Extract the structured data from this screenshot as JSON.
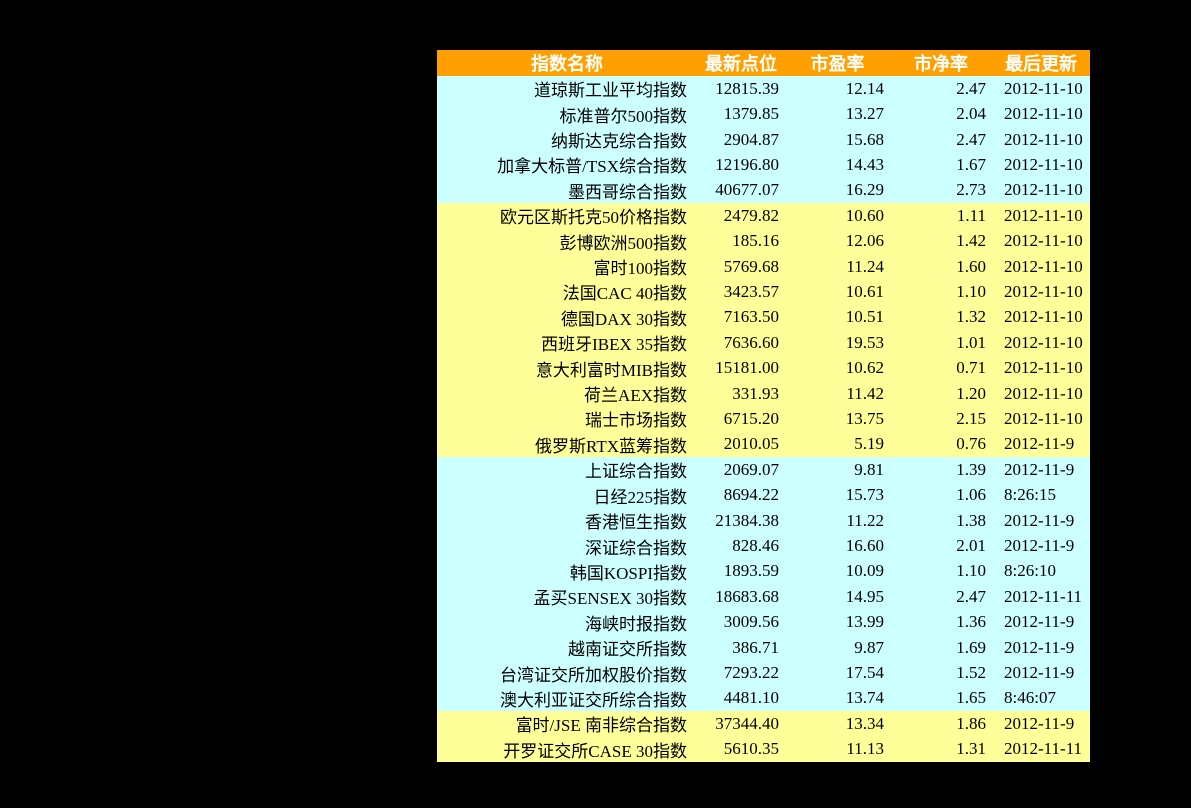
{
  "colors": {
    "page_bg": "#000000",
    "header_bg": "#FFA000",
    "header_text": "#FFFFFF",
    "row_cyan": "#CCFFFF",
    "row_yellow": "#FFFF99",
    "text": "#000000"
  },
  "chart_data": {
    "type": "table",
    "columns": [
      "指数名称",
      "最新点位",
      "市盈率",
      "市净率",
      "最后更新"
    ],
    "rows": [
      {
        "group": "cyan",
        "cells": [
          "道琼斯工业平均指数",
          "12815.39",
          "12.14",
          "2.47",
          "2012-11-10"
        ]
      },
      {
        "group": "cyan",
        "cells": [
          "标准普尔500指数",
          "1379.85",
          "13.27",
          "2.04",
          "2012-11-10"
        ]
      },
      {
        "group": "cyan",
        "cells": [
          "纳斯达克综合指数",
          "2904.87",
          "15.68",
          "2.47",
          "2012-11-10"
        ]
      },
      {
        "group": "cyan",
        "cells": [
          "加拿大标普/TSX综合指数",
          "12196.80",
          "14.43",
          "1.67",
          "2012-11-10"
        ]
      },
      {
        "group": "cyan",
        "cells": [
          "墨西哥综合指数",
          "40677.07",
          "16.29",
          "2.73",
          "2012-11-10"
        ]
      },
      {
        "group": "yellow",
        "cells": [
          "欧元区斯托克50价格指数",
          "2479.82",
          "10.60",
          "1.11",
          "2012-11-10"
        ]
      },
      {
        "group": "yellow",
        "cells": [
          "彭博欧洲500指数",
          "185.16",
          "12.06",
          "1.42",
          "2012-11-10"
        ]
      },
      {
        "group": "yellow",
        "cells": [
          "富时100指数",
          "5769.68",
          "11.24",
          "1.60",
          "2012-11-10"
        ]
      },
      {
        "group": "yellow",
        "cells": [
          "法国CAC 40指数",
          "3423.57",
          "10.61",
          "1.10",
          "2012-11-10"
        ]
      },
      {
        "group": "yellow",
        "cells": [
          "德国DAX 30指数",
          "7163.50",
          "10.51",
          "1.32",
          "2012-11-10"
        ]
      },
      {
        "group": "yellow",
        "cells": [
          "西班牙IBEX 35指数",
          "7636.60",
          "19.53",
          "1.01",
          "2012-11-10"
        ]
      },
      {
        "group": "yellow",
        "cells": [
          "意大利富时MIB指数",
          "15181.00",
          "10.62",
          "0.71",
          "2012-11-10"
        ]
      },
      {
        "group": "yellow",
        "cells": [
          "荷兰AEX指数",
          "331.93",
          "11.42",
          "1.20",
          "2012-11-10"
        ]
      },
      {
        "group": "yellow",
        "cells": [
          "瑞士市场指数",
          "6715.20",
          "13.75",
          "2.15",
          "2012-11-10"
        ]
      },
      {
        "group": "yellow",
        "cells": [
          "俄罗斯RTX蓝筹指数",
          "2010.05",
          "5.19",
          "0.76",
          "2012-11-9"
        ]
      },
      {
        "group": "cyan",
        "cells": [
          "上证综合指数",
          "2069.07",
          "9.81",
          "1.39",
          "2012-11-9"
        ]
      },
      {
        "group": "cyan",
        "cells": [
          "日经225指数",
          "8694.22",
          "15.73",
          "1.06",
          "8:26:15"
        ]
      },
      {
        "group": "cyan",
        "cells": [
          "香港恒生指数",
          "21384.38",
          "11.22",
          "1.38",
          "2012-11-9"
        ]
      },
      {
        "group": "cyan",
        "cells": [
          "深证综合指数",
          "828.46",
          "16.60",
          "2.01",
          "2012-11-9"
        ]
      },
      {
        "group": "cyan",
        "cells": [
          "韩国KOSPI指数",
          "1893.59",
          "10.09",
          "1.10",
          "8:26:10"
        ]
      },
      {
        "group": "cyan",
        "cells": [
          "孟买SENSEX 30指数",
          "18683.68",
          "14.95",
          "2.47",
          "2012-11-11"
        ]
      },
      {
        "group": "cyan",
        "cells": [
          "海峡时报指数",
          "3009.56",
          "13.99",
          "1.36",
          "2012-11-9"
        ]
      },
      {
        "group": "cyan",
        "cells": [
          "越南证交所指数",
          "386.71",
          "9.87",
          "1.69",
          "2012-11-9"
        ]
      },
      {
        "group": "cyan",
        "cells": [
          "台湾证交所加权股价指数",
          "7293.22",
          "17.54",
          "1.52",
          "2012-11-9"
        ]
      },
      {
        "group": "cyan",
        "cells": [
          "澳大利亚证交所综合指数",
          "4481.10",
          "13.74",
          "1.65",
          "8:46:07"
        ]
      },
      {
        "group": "yellow",
        "cells": [
          "富时/JSE 南非综合指数",
          "37344.40",
          "13.34",
          "1.86",
          "2012-11-9"
        ]
      },
      {
        "group": "yellow",
        "cells": [
          "开罗证交所CASE 30指数",
          "5610.35",
          "11.13",
          "1.31",
          "2012-11-11"
        ]
      }
    ]
  }
}
